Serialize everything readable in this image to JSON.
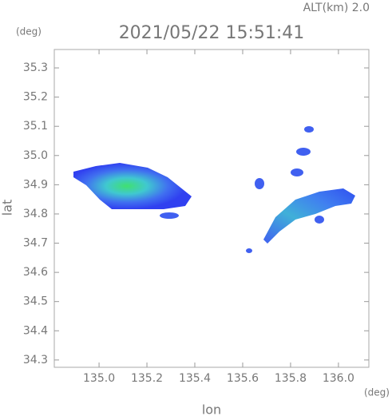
{
  "chart_data": {
    "type": "map",
    "title": "2021/05/22 15:51:41",
    "altitude_label": "ALT(km) 2.0",
    "y_unit": "(deg)",
    "x_unit": "(deg)",
    "xlabel": "lon",
    "ylabel": "lat",
    "xlim": [
      134.813,
      136.127
    ],
    "ylim": [
      34.275,
      35.363
    ],
    "xticks": [
      {
        "value": 135.0,
        "label": "135.0"
      },
      135.2,
      135.4,
      135.6,
      135.8,
      {
        "value": 136.0,
        "label": "136.0"
      }
    ],
    "yticks": [
      34.3,
      34.4,
      34.5,
      34.6,
      34.7,
      34.8,
      34.9,
      {
        "value": 35.0,
        "label": "35.0"
      },
      35.1,
      35.2,
      35.3
    ]
  }
}
